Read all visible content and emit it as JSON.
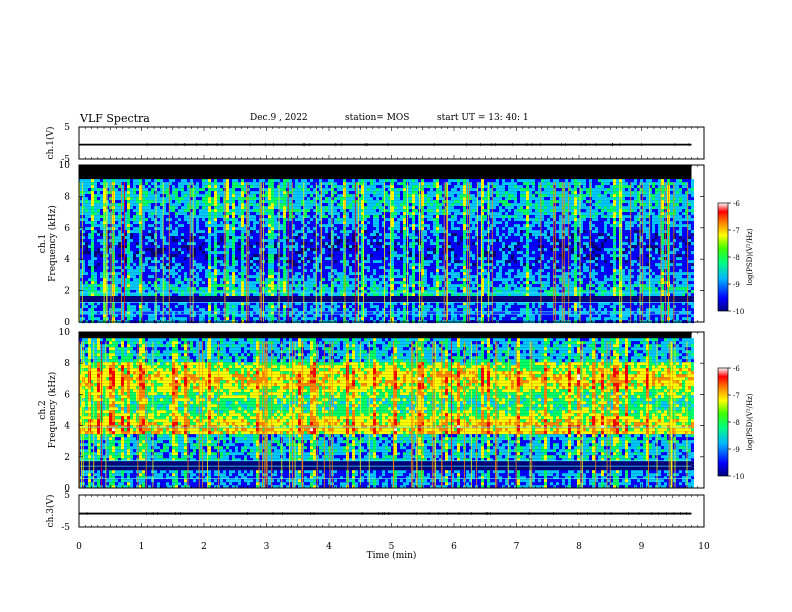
{
  "header": {
    "title": "VLF Spectra",
    "date": "Dec.9 , 2022",
    "station": "station= MOS",
    "start_ut": "start UT = 13: 40: 1"
  },
  "chart_data": [
    {
      "type": "line",
      "id": "ch1-voltage",
      "ylabel": "ch.1(V)",
      "ylim": [
        -5,
        5
      ],
      "yticks": [
        "5",
        "-5"
      ],
      "xlim": [
        0,
        10
      ],
      "series": [
        {
          "x": [
            0,
            9.8
          ],
          "y": [
            -0.5,
            -0.5
          ]
        }
      ]
    },
    {
      "type": "heatmap",
      "id": "ch1-spectrogram",
      "ylabel_top": "ch.1",
      "ylabel": "Frequency (kHz)",
      "ylim": [
        0,
        10
      ],
      "yticks": [
        "0",
        "2",
        "4",
        "6",
        "8",
        "10"
      ],
      "xlim": [
        0,
        10
      ],
      "data_xmax": 9.8,
      "colorbar": {
        "label": "log(PSD)(V²/Hz)",
        "range": [
          -10,
          -6
        ],
        "ticks": [
          "-6",
          "-7",
          "-8",
          "-9",
          "-10"
        ]
      }
    },
    {
      "type": "heatmap",
      "id": "ch2-spectrogram",
      "ylabel_top": "ch.2",
      "ylabel": "Frequency (kHz)",
      "ylim": [
        0,
        10
      ],
      "yticks": [
        "0",
        "2",
        "4",
        "6",
        "8",
        "10"
      ],
      "xlim": [
        0,
        10
      ],
      "data_xmax": 9.8,
      "colorbar": {
        "label": "log(PSD)(V²/Hz)",
        "range": [
          -10,
          -6
        ],
        "ticks": [
          "-6",
          "-7",
          "-8",
          "-9",
          "-10"
        ]
      }
    },
    {
      "type": "line",
      "id": "ch3-voltage",
      "ylabel": "ch.3(V)",
      "ylim": [
        -5,
        5
      ],
      "yticks": [
        "5",
        "-5"
      ],
      "xlim": [
        0,
        10
      ],
      "series": [
        {
          "x": [
            0,
            9.8
          ],
          "y": [
            -0.8,
            -0.8
          ]
        }
      ]
    }
  ],
  "xaxis": {
    "label": "Time (min)",
    "ticks": [
      "0",
      "1",
      "2",
      "3",
      "4",
      "5",
      "6",
      "7",
      "8",
      "9",
      "10"
    ]
  },
  "colors": {
    "spectrogram_background": "#000000",
    "colormap": [
      "#00007f",
      "#0000ff",
      "#00c8ff",
      "#00ff66",
      "#ffff00",
      "#ff8800",
      "#ff0000",
      "#ffffff"
    ]
  }
}
